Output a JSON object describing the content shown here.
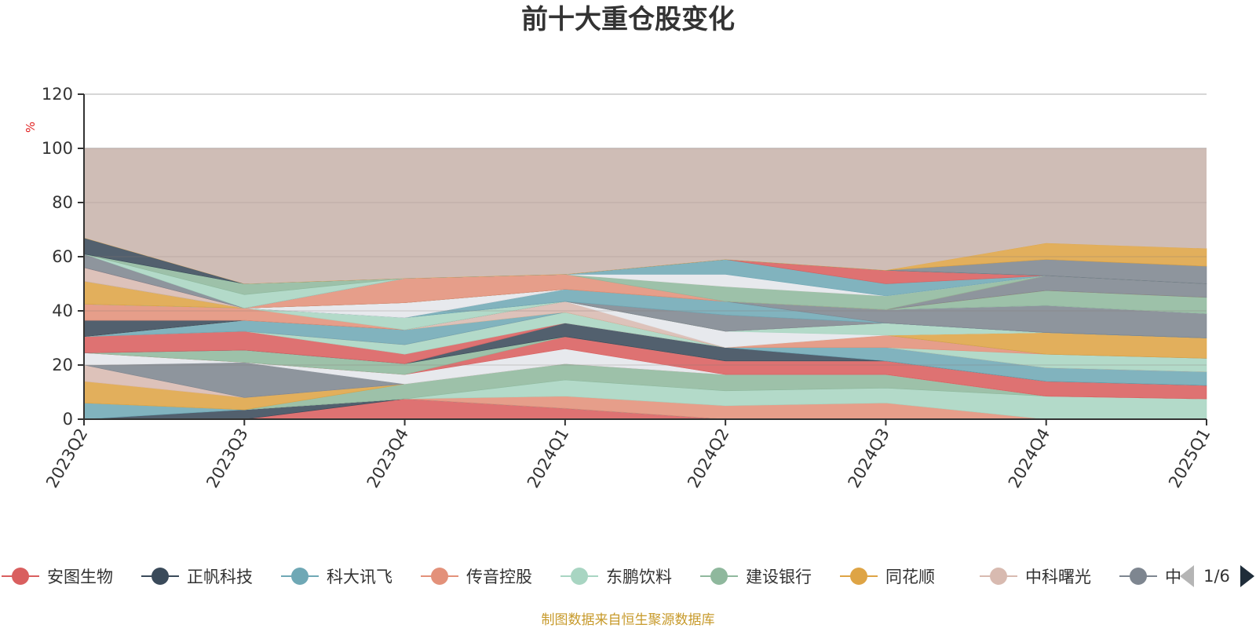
{
  "chart_data": {
    "type": "area",
    "stacked": true,
    "title": "前十大重仓股变化",
    "ylabel": "%",
    "ylim": [
      0,
      120
    ],
    "yticks": [
      0,
      20,
      40,
      60,
      80,
      100,
      120
    ],
    "grid": true,
    "legend_position": "bottom",
    "categories": [
      "2023Q2",
      "2023Q3",
      "2023Q4",
      "2024Q1",
      "2024Q2",
      "2024Q3",
      "2024Q4",
      "2025Q1"
    ],
    "series": [
      {
        "name": "安图生物",
        "color": "#d95f5f",
        "values": [
          0,
          0,
          7.5,
          4,
          0,
          0,
          0,
          0
        ]
      },
      {
        "name": "正帆科技",
        "color": "#3a4a5a",
        "values": [
          0,
          3.5,
          0,
          0,
          0,
          0,
          0,
          0
        ]
      },
      {
        "name": "科大讯飞",
        "color": "#6fa8b5",
        "values": [
          6,
          0,
          0,
          0,
          0,
          0,
          0,
          0
        ]
      },
      {
        "name": "传音控股",
        "color": "#e3917a",
        "values": [
          0,
          0,
          0,
          4.5,
          5,
          6,
          0,
          0
        ]
      },
      {
        "name": "东鹏饮料",
        "color": "#a8d5c2",
        "values": [
          0,
          0,
          0,
          6,
          5.5,
          5.5,
          8.5,
          7.5
        ]
      },
      {
        "name": "建设银行",
        "color": "#8fb89d",
        "values": [
          0,
          0,
          5.5,
          6,
          6,
          5,
          0,
          0
        ]
      },
      {
        "name": "同花顺",
        "color": "#dea445",
        "values": [
          8,
          4.5,
          0,
          0,
          0,
          0,
          0,
          0
        ]
      },
      {
        "name": "中科曙光",
        "color": "#d8bab0",
        "values": [
          6,
          0,
          0,
          0,
          0,
          0,
          0,
          0
        ]
      },
      {
        "name": "中",
        "color": "#7e8690",
        "values": [
          0,
          13,
          0,
          0,
          0,
          0,
          0,
          0
        ]
      }
    ],
    "other_bands": [
      {
        "color": "#e4e6ea",
        "values": [
          4.5,
          0,
          3.5,
          5.5,
          0,
          0,
          0,
          0
        ]
      },
      {
        "color": "#d95f5f",
        "values": [
          0,
          0,
          0,
          4.5,
          5,
          5,
          5.5,
          5
        ]
      },
      {
        "color": "#8fb89d",
        "values": [
          0,
          4.5,
          4,
          0,
          0,
          0,
          0,
          0
        ]
      },
      {
        "color": "#3a4a5a",
        "values": [
          0,
          0,
          0,
          5,
          5,
          0,
          0,
          0
        ]
      },
      {
        "color": "#6fa8b5",
        "values": [
          0,
          0,
          0,
          0,
          0,
          5,
          5,
          5
        ]
      },
      {
        "color": "#d95f5f",
        "values": [
          6,
          7,
          3.5,
          0,
          0,
          0,
          0,
          0
        ]
      },
      {
        "color": "#a8d5c2",
        "values": [
          0,
          0,
          3.5,
          4,
          0,
          0,
          5,
          5
        ]
      },
      {
        "color": "#e3917a",
        "values": [
          0,
          0,
          0,
          0,
          0,
          4.5,
          0,
          0
        ]
      },
      {
        "color": "#6fa8b5",
        "values": [
          0,
          4,
          5.5,
          0,
          0,
          0,
          0,
          0
        ]
      },
      {
        "color": "#dea445",
        "values": [
          0,
          0,
          0,
          0,
          0,
          0,
          8,
          7.5
        ]
      },
      {
        "color": "#d8bab0",
        "values": [
          0,
          0,
          0,
          4,
          0,
          0,
          0,
          0
        ]
      },
      {
        "color": "#e4e6ea",
        "values": [
          0,
          0,
          0,
          0,
          6,
          0,
          0,
          0
        ]
      },
      {
        "color": "#a8d5c2",
        "values": [
          0,
          0,
          0,
          0,
          0,
          4.5,
          0,
          0
        ]
      },
      {
        "color": "#3a4a5a",
        "values": [
          6,
          0,
          0,
          0,
          0,
          0,
          0,
          0
        ]
      },
      {
        "color": "#e3917a",
        "values": [
          6,
          4.5,
          0,
          0,
          0,
          0,
          0,
          0
        ]
      },
      {
        "color": "#a8d5c2",
        "values": [
          0,
          0,
          4.5,
          0,
          0,
          0,
          0,
          0
        ]
      },
      {
        "color": "#7e8690",
        "values": [
          0,
          0,
          0,
          0,
          6,
          0,
          0,
          0
        ]
      },
      {
        "color": "#6fa8b5",
        "values": [
          0,
          0,
          0,
          4.5,
          5,
          0,
          0,
          0
        ]
      },
      {
        "color": "#7e8690",
        "values": [
          0,
          0,
          0,
          0,
          0,
          5,
          10,
          9
        ]
      },
      {
        "color": "#e4e6ea",
        "values": [
          0,
          0,
          5.5,
          0,
          0,
          0,
          0,
          0
        ]
      },
      {
        "color": "#8fb89d",
        "values": [
          0,
          0,
          0,
          0,
          0,
          0,
          5.5,
          6
        ]
      },
      {
        "color": "#dea445",
        "values": [
          8.5,
          0,
          0,
          0,
          0,
          0,
          0,
          0
        ]
      },
      {
        "color": "#7e8690",
        "values": [
          0,
          0,
          0,
          0,
          0,
          0,
          5.5,
          5
        ]
      },
      {
        "color": "#e3917a",
        "values": [
          0,
          0,
          9,
          5.5,
          0,
          0,
          0,
          0
        ]
      },
      {
        "color": "#8fb89d",
        "values": [
          0,
          0,
          0,
          0,
          5.5,
          5,
          0,
          0
        ]
      },
      {
        "color": "#d8bab0",
        "values": [
          5,
          0,
          0,
          0,
          0,
          0,
          0,
          0
        ]
      },
      {
        "color": "#e4e6ea",
        "values": [
          0,
          0,
          0,
          0,
          4.5,
          0,
          0,
          0
        ]
      },
      {
        "color": "#6fa8b5",
        "values": [
          0,
          0,
          0,
          0,
          5.5,
          4.5,
          0,
          0
        ]
      },
      {
        "color": "#d95f5f",
        "values": [
          0,
          0,
          0,
          0,
          0,
          5,
          0,
          0
        ]
      },
      {
        "color": "#7e8690",
        "values": [
          5,
          0,
          0,
          0,
          0,
          0,
          0,
          0
        ]
      },
      {
        "color": "#a8d5c2",
        "values": [
          0,
          5,
          0,
          0,
          0,
          0,
          0,
          0
        ]
      },
      {
        "color": "#8fb89d",
        "values": [
          0,
          4,
          0,
          0,
          0,
          0,
          0,
          0
        ]
      },
      {
        "color": "#3a4a5a",
        "values": [
          6,
          0,
          0,
          0,
          0,
          0,
          0,
          0
        ]
      },
      {
        "color": "#7e8690",
        "values": [
          0,
          0,
          0,
          0,
          0,
          0,
          6,
          6.5
        ]
      },
      {
        "color": "#dea445",
        "values": [
          0,
          0,
          0,
          0,
          0,
          0,
          6,
          6.5
        ]
      }
    ],
    "remainder_color": "#cfbdb6",
    "legend_page": "1/6"
  },
  "source_note": "制图数据来自恒生聚源数据库",
  "colors": {
    "nav_active": "#1f2d3a",
    "nav_inactive": "#b5b5b5"
  }
}
